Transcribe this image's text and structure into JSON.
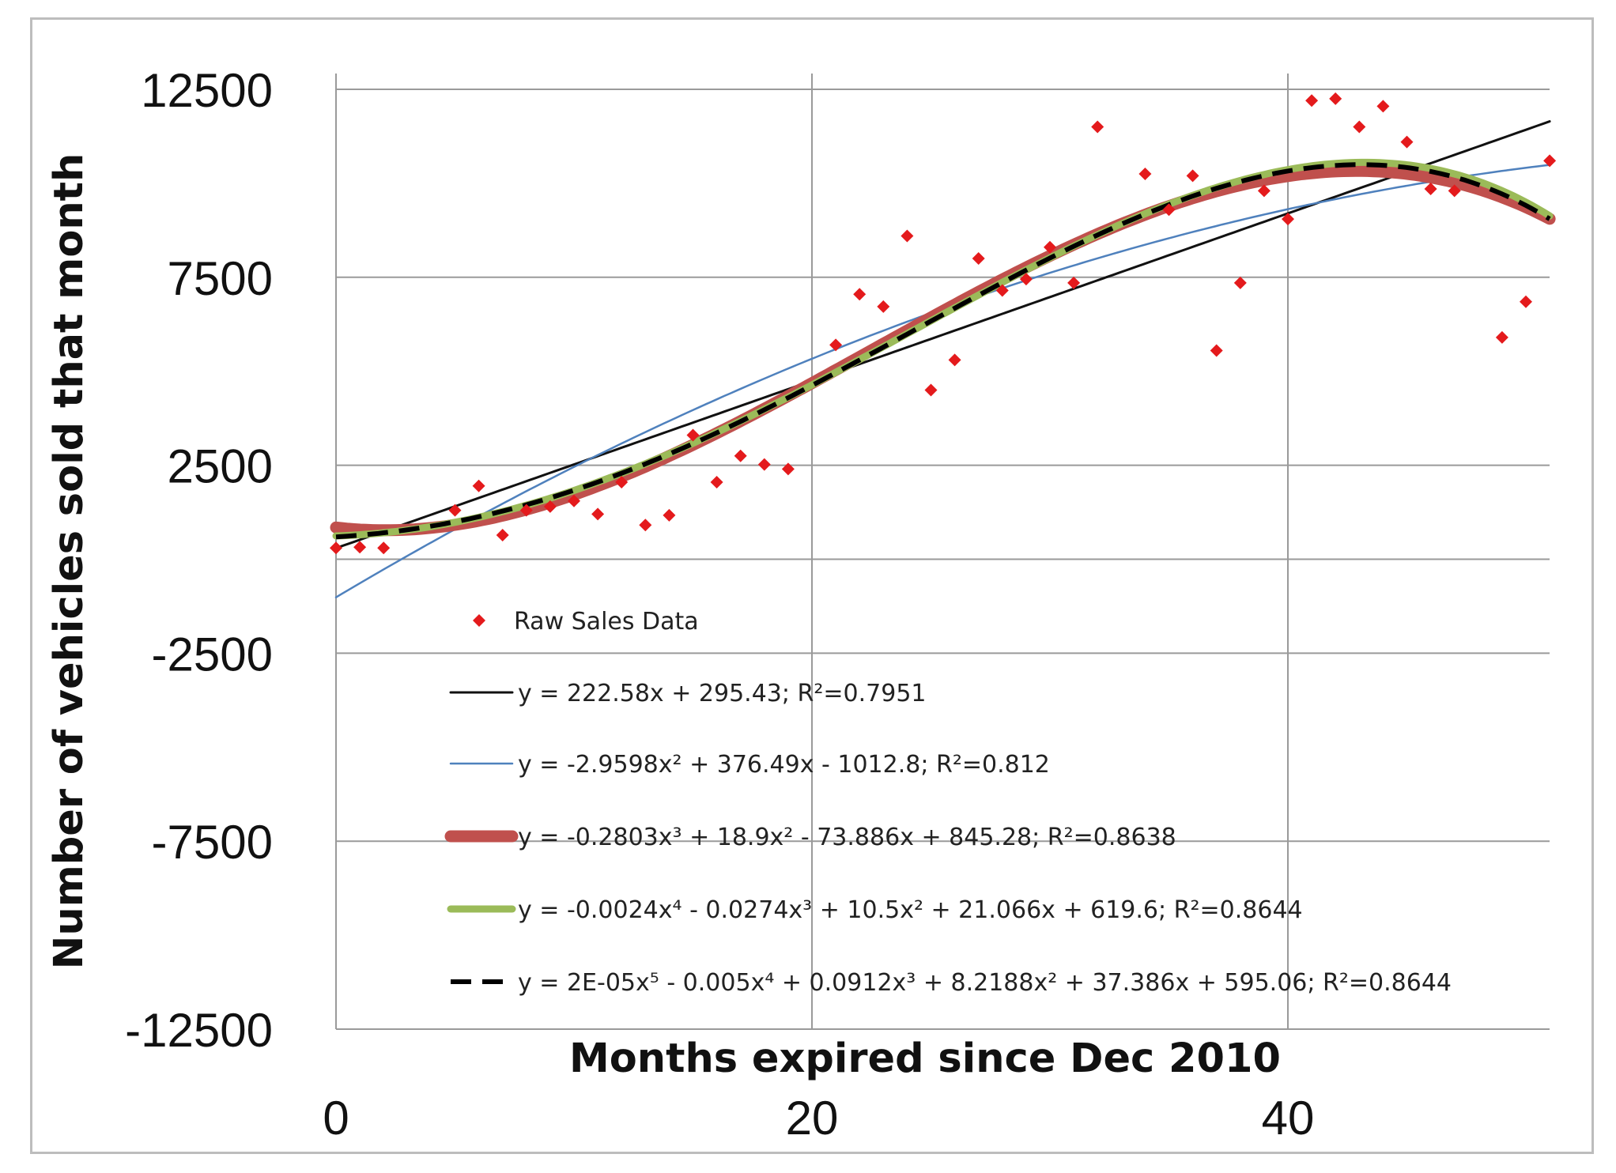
{
  "chart_data": {
    "type": "scatter",
    "title": "",
    "xlabel": "Months expired since Dec 2010",
    "ylabel": "Number of vehicles sold that month",
    "xlim": [
      0,
      51
    ],
    "ylim": [
      -12500,
      12500
    ],
    "x_ticks": [
      0,
      20,
      40
    ],
    "y_ticks": [
      12500,
      7500,
      2500,
      -2500,
      -7500,
      -12500
    ],
    "grid": true,
    "legend_position": "bottom-center inside plot",
    "series": [
      {
        "name": "Raw Sales Data",
        "kind": "scatter",
        "color": "#e41a1c",
        "points": [
          [
            0,
            300
          ],
          [
            1,
            320
          ],
          [
            2,
            300
          ],
          [
            5,
            1300
          ],
          [
            6,
            1950
          ],
          [
            7,
            640
          ],
          [
            8,
            1300
          ],
          [
            9,
            1400
          ],
          [
            10,
            1550
          ],
          [
            11,
            1200
          ],
          [
            12,
            2050
          ],
          [
            13,
            910
          ],
          [
            14,
            1170
          ],
          [
            15,
            3300
          ],
          [
            16,
            2050
          ],
          [
            17,
            2750
          ],
          [
            18,
            2520
          ],
          [
            19,
            2400
          ],
          [
            21,
            5700
          ],
          [
            22,
            7050
          ],
          [
            23,
            6720
          ],
          [
            24,
            8600
          ],
          [
            25,
            4500
          ],
          [
            26,
            5300
          ],
          [
            27,
            8000
          ],
          [
            28,
            7150
          ],
          [
            29,
            7450
          ],
          [
            30,
            8300
          ],
          [
            31,
            7350
          ],
          [
            32,
            11500
          ],
          [
            34,
            10250
          ],
          [
            35,
            9300
          ],
          [
            36,
            10200
          ],
          [
            37,
            5550
          ],
          [
            38,
            7350
          ],
          [
            39,
            9800
          ],
          [
            40,
            9050
          ],
          [
            41,
            12200
          ],
          [
            42,
            12250
          ],
          [
            43,
            11500
          ],
          [
            44,
            12050
          ],
          [
            45,
            11100
          ],
          [
            46,
            9850
          ],
          [
            47,
            9800
          ],
          [
            49,
            5900
          ],
          [
            50,
            6850
          ],
          [
            51,
            10600
          ]
        ]
      },
      {
        "name": "y = 222.58x + 295.43; R²=0.7951",
        "kind": "line",
        "color": "#111111",
        "coefficients": [
          295.43,
          222.58
        ]
      },
      {
        "name": "y = -2.9598x² + 376.49x - 1012.8; R²=0.812",
        "kind": "line",
        "color": "#4f81bd",
        "coefficients": [
          -1012.8,
          376.49,
          -2.9598
        ]
      },
      {
        "name": "y = -0.2803x³ + 18.9x² - 73.886x + 845.28; R²=0.8638",
        "kind": "line",
        "color": "#c0504d",
        "coefficients": [
          845.28,
          -73.886,
          18.9,
          -0.2803
        ]
      },
      {
        "name": "y = -0.0024x⁴ - 0.0274x³ + 10.5x² + 21.066x + 619.6; R²=0.8644",
        "kind": "line",
        "color": "#9bbb59",
        "coefficients": [
          619.6,
          21.066,
          10.5,
          -0.0274,
          -0.0024
        ]
      },
      {
        "name": "y = 2E-05x⁵ - 0.005x⁴ + 0.0912x³ + 8.2188x² + 37.386x + 595.06; R²=0.8644",
        "kind": "line",
        "color": "#000000",
        "dashed": true,
        "coefficients": [
          595.06,
          37.386,
          8.2188,
          0.0912,
          -0.005,
          2e-05
        ]
      }
    ]
  }
}
